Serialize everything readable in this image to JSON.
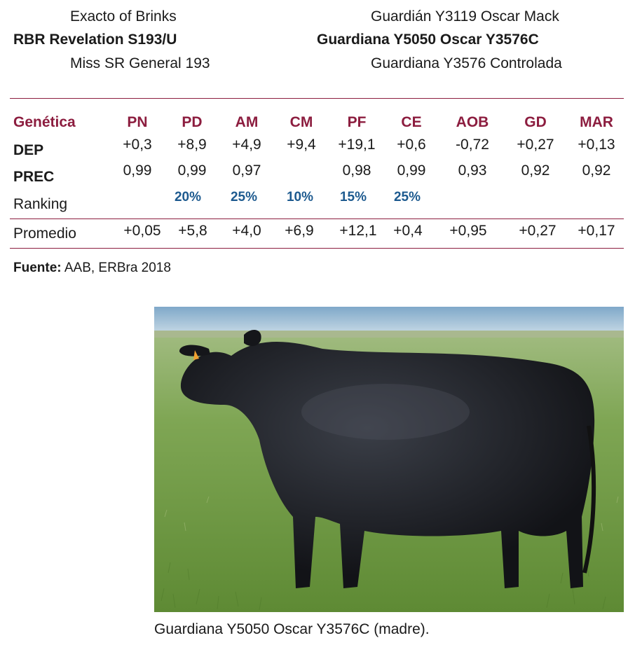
{
  "pedigree": {
    "sire_sire": "Exacto of Brinks",
    "sire": "RBR Revelation S193/U",
    "sire_dam": "Miss SR General 193",
    "dam_sire": "Guardián Y3119 Oscar Mack",
    "dam": "Guardiana Y5050 Oscar Y3576C",
    "dam_dam": "Guardiana Y3576 Controlada"
  },
  "table": {
    "corner": "Genética",
    "columns": [
      "PN",
      "PD",
      "AM",
      "CM",
      "PF",
      "CE",
      "AOB",
      "GD",
      "MAR"
    ],
    "rows": [
      {
        "label": "DEP",
        "values": [
          "+0,3",
          "+8,9",
          "+4,9",
          "+9,4",
          "+19,1",
          "+0,6",
          "-0,72",
          "+0,27",
          "+0,13"
        ]
      },
      {
        "label": "PREC",
        "values": [
          "0,99",
          "0,99",
          "0,97",
          "",
          "0,98",
          "0,99",
          "0,93",
          "0,92",
          "0,92"
        ]
      },
      {
        "label": "Ranking",
        "values": [
          "",
          "20%",
          "25%",
          "10%",
          "15%",
          "25%",
          "",
          "",
          ""
        ]
      },
      {
        "label": "Promedio",
        "values": [
          "+0,05",
          "+5,8",
          "+4,0",
          "+6,9",
          "+12,1",
          "+0,4",
          "+0,95",
          "+0,27",
          "+0,17"
        ]
      }
    ]
  },
  "source": {
    "label": "Fuente:",
    "text": "AAB, ERBra 2018"
  },
  "photo": {
    "caption": "Guardiana Y5050 Oscar Y3576C (madre)."
  },
  "colors": {
    "accent": "#8c1d3f",
    "ranking": "#1d5a8f"
  }
}
